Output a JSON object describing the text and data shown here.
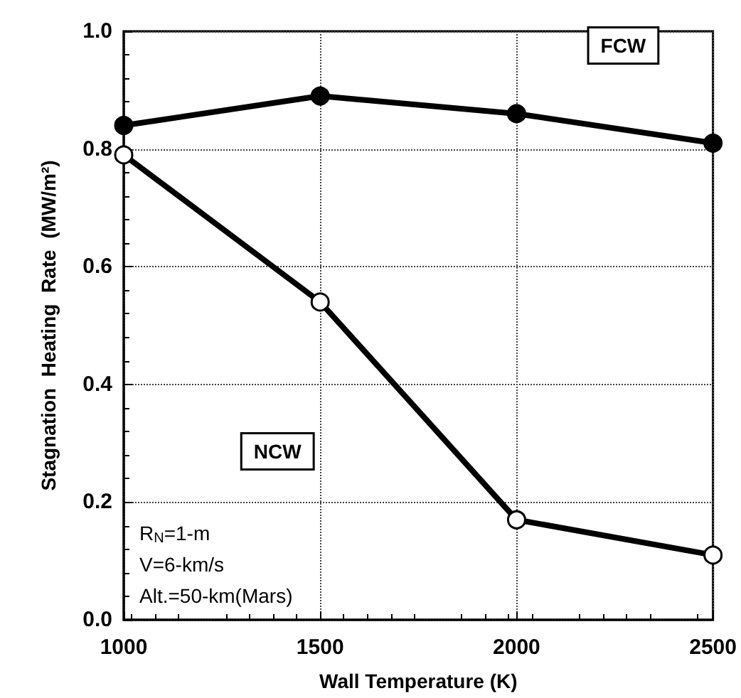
{
  "chart_data": {
    "type": "line",
    "xlabel": "Wall Temperature (K)",
    "ylabel": "Stagnation  Heating  Rate  (MW/m²)",
    "x": [
      1000,
      1500,
      2000,
      2500
    ],
    "series": [
      {
        "name": "FCW",
        "color": "#000000",
        "marker": "circle",
        "values": [
          0.84,
          0.89,
          0.86,
          0.81
        ]
      },
      {
        "name": "NCW",
        "color": "#000000",
        "marker": "circle",
        "values": [
          0.79,
          0.54,
          0.17,
          0.11
        ]
      }
    ],
    "xlim": [
      1000,
      2500
    ],
    "xticks": [
      1000,
      1500,
      2000,
      2500
    ],
    "ylim": [
      0,
      1
    ],
    "yticks": [
      {
        "value": 0,
        "label": "0.0"
      },
      {
        "value": 0.2,
        "label": "0.2"
      },
      {
        "value": 0.4,
        "label": "0.4"
      },
      {
        "value": 0.6,
        "label": "0.6"
      },
      {
        "value": 0.8,
        "label": "0.8"
      },
      {
        "value": 1,
        "label": "1.0"
      }
    ],
    "grid": true,
    "legend": false,
    "line_style": "solid",
    "annotations": [
      "R$_{N}$=1-m",
      "V=6-km/s",
      "Alt.=50-km(Mars)"
    ]
  }
}
